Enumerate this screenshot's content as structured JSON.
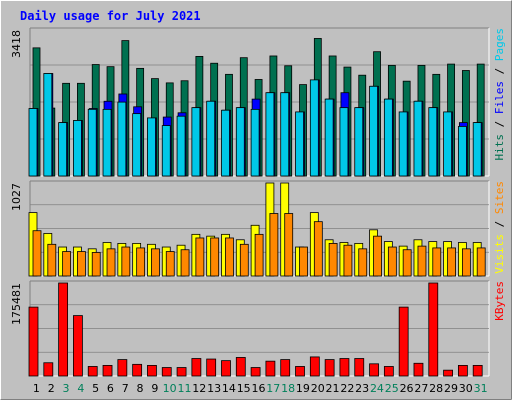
{
  "chart_data": {
    "type": "bar",
    "title": "Daily usage for July 2021",
    "categories": [
      "1",
      "2",
      "3",
      "4",
      "5",
      "6",
      "7",
      "8",
      "9",
      "10",
      "11",
      "12",
      "13",
      "14",
      "15",
      "16",
      "17",
      "18",
      "19",
      "20",
      "21",
      "22",
      "23",
      "24",
      "25",
      "26",
      "27",
      "28",
      "29",
      "30",
      "31"
    ],
    "weekend_days": [
      "3",
      "4",
      "10",
      "11",
      "17",
      "18",
      "24",
      "25",
      "31"
    ],
    "panels": [
      {
        "name": "hits-files-pages",
        "max_label": "3418",
        "ylim": [
          0,
          3418
        ],
        "legend": [
          {
            "label": "Pages",
            "color": "#00c8e8"
          },
          {
            "label": "Files",
            "color": "#0000ff"
          },
          {
            "label": "Hits",
            "color": "#007050"
          }
        ],
        "series": [
          {
            "name": "Hits",
            "values": [
              3000,
              1590,
              2170,
              2170,
              2610,
              2560,
              3170,
              2520,
              2280,
              2180,
              2230,
              2800,
              2640,
              2380,
              2770,
              2260,
              2810,
              2580,
              2140,
              3220,
              2810,
              2550,
              2360,
              2910,
              2590,
              2220,
              2590,
              2380,
              2620,
              2470,
              2620
            ]
          },
          {
            "name": "Files",
            "values": [
              1580,
              2400,
              1250,
              1300,
              1580,
              1750,
              1920,
              1620,
              1360,
              1380,
              1480,
              1600,
              1750,
              1540,
              1600,
              1800,
              1950,
              1950,
              1500,
              2250,
              1800,
              1950,
              1600,
              2100,
              1800,
              1500,
              1750,
              1600,
              1500,
              1250,
              1250
            ]
          },
          {
            "name": "Pages",
            "values": [
              1580,
              2400,
              1250,
              1300,
              1560,
              1560,
              1730,
              1460,
              1360,
              1180,
              1400,
              1600,
              1750,
              1540,
              1600,
              1560,
              1950,
              1950,
              1500,
              2250,
              1800,
              1600,
              1600,
              2100,
              1800,
              1500,
              1750,
              1600,
              1500,
              1160,
              1250
            ]
          }
        ]
      },
      {
        "name": "visits-sites",
        "max_label": "1027",
        "ylim": [
          0,
          1027
        ],
        "legend": [
          {
            "label": "Sites",
            "color": "#ff8800"
          },
          {
            "label": "Visits",
            "color": "#ffff00"
          }
        ],
        "series": [
          {
            "name": "Visits",
            "values": [
              700,
              470,
              320,
              320,
              300,
              370,
              360,
              360,
              350,
              320,
              340,
              460,
              440,
              460,
              400,
              560,
              1027,
              1027,
              320,
              700,
              400,
              370,
              360,
              510,
              380,
              330,
              400,
              380,
              380,
              370,
              370
            ]
          },
          {
            "name": "Sites",
            "values": [
              500,
              350,
              270,
              270,
              260,
              300,
              320,
              310,
              300,
              270,
              290,
              420,
              420,
              420,
              350,
              460,
              690,
              690,
              320,
              600,
              360,
              340,
              300,
              440,
              320,
              290,
              330,
              310,
              310,
              300,
              310
            ]
          }
        ]
      },
      {
        "name": "kbytes",
        "max_label": "175481",
        "ylim": [
          0,
          175481
        ],
        "legend": [
          {
            "label": "KBytes",
            "color": "#ff0000"
          }
        ],
        "series": [
          {
            "name": "KBytes",
            "values": [
              130000,
              25000,
              175481,
              114000,
              18000,
              20000,
              31000,
              22000,
              20000,
              16000,
              16000,
              33000,
              32000,
              29000,
              35000,
              16000,
              28000,
              31000,
              18000,
              36000,
              31000,
              33000,
              33000,
              23000,
              18000,
              130000,
              24000,
              175481,
              11000,
              20000,
              20000
            ]
          }
        ]
      }
    ]
  }
}
